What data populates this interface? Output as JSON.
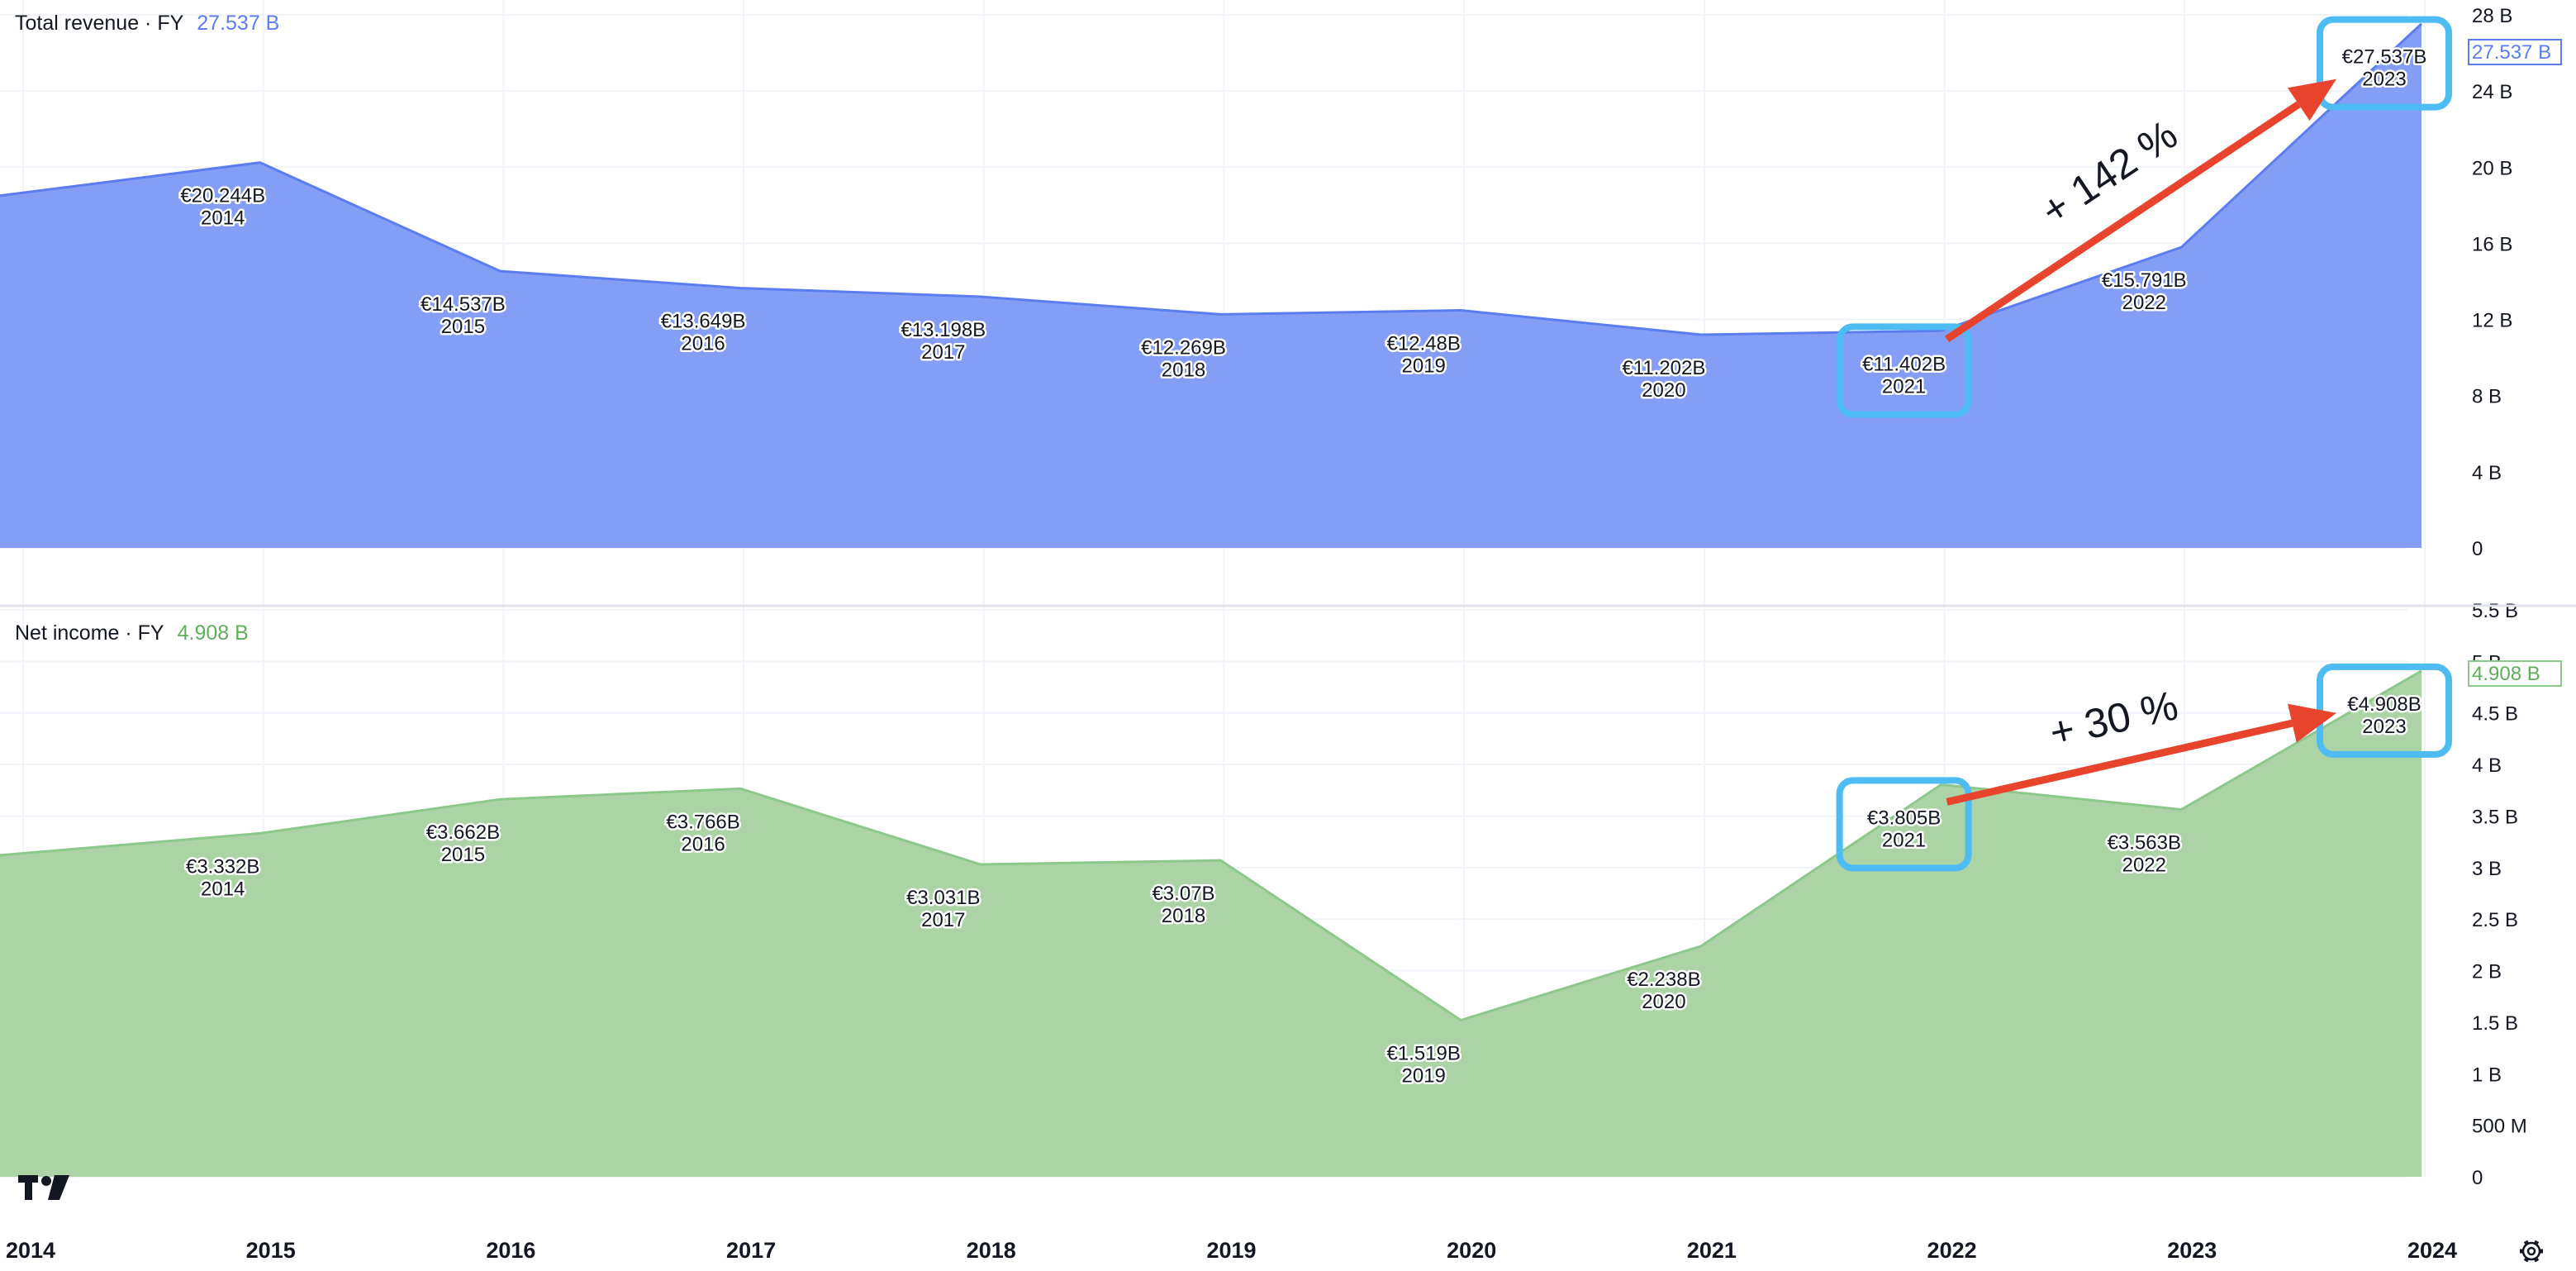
{
  "colors": {
    "revenue_line": "#5b7df0",
    "revenue_fill": "#849ef6",
    "net_income_line": "#8cc88a",
    "net_income_fill": "#abd3a6",
    "highlight_box": "#4cbcf2",
    "arrow": "#e8442d",
    "grid": "#f0f3fa",
    "separator": "#e0e3eb"
  },
  "icons": {
    "logo": "tradingview-logo-icon",
    "settings": "settings-gear-icon"
  },
  "chart_data": [
    {
      "type": "area",
      "title": "Total revenue · FY",
      "last_value_label": "27.537 B",
      "x": [
        "2014",
        "2015",
        "2016",
        "2017",
        "2018",
        "2019",
        "2020",
        "2021",
        "2022",
        "2023"
      ],
      "series": [
        {
          "name": "Total revenue",
          "values": [
            20.244,
            14.537,
            13.649,
            13.198,
            12.269,
            12.48,
            11.202,
            11.402,
            15.791,
            27.537
          ]
        }
      ],
      "data_labels": [
        "€20.244B",
        "€14.537B",
        "€13.649B",
        "€13.198B",
        "€12.269B",
        "€12.48B",
        "€11.202B",
        "€11.402B",
        "€15.791B",
        "€27.537B"
      ],
      "start_value": 18.5,
      "ylim": [
        0,
        28
      ],
      "yticks": [
        0,
        4,
        8,
        12,
        16,
        20,
        24,
        28
      ],
      "ytick_labels": [
        "0",
        "4 B",
        "8 B",
        "12 B",
        "16 B",
        "20 B",
        "24 B",
        "28 B"
      ],
      "annotation": {
        "text": "+ 142 %",
        "from": "2021",
        "to": "2023"
      },
      "highlighted": [
        "2021",
        "2023"
      ]
    },
    {
      "type": "area",
      "title": "Net income · FY",
      "last_value_label": "4.908 B",
      "x": [
        "2014",
        "2015",
        "2016",
        "2017",
        "2018",
        "2019",
        "2020",
        "2021",
        "2022",
        "2023"
      ],
      "series": [
        {
          "name": "Net income",
          "values": [
            3.332,
            3.662,
            3.766,
            3.031,
            3.07,
            1.519,
            2.238,
            3.805,
            3.563,
            4.908
          ]
        }
      ],
      "data_labels": [
        "€3.332B",
        "€3.662B",
        "€3.766B",
        "€3.031B",
        "€3.07B",
        "€1.519B",
        "€2.238B",
        "€3.805B",
        "€3.563B",
        "€4.908B"
      ],
      "start_value": 3.12,
      "ylim": [
        0,
        5.5
      ],
      "yticks": [
        0,
        0.5,
        1,
        1.5,
        2,
        2.5,
        3,
        3.5,
        4,
        4.5,
        5,
        5.5
      ],
      "ytick_labels": [
        "0",
        "500 M",
        "1 B",
        "1.5 B",
        "2 B",
        "2.5 B",
        "3 B",
        "3.5 B",
        "4 B",
        "4.5 B",
        "5 B",
        "5.5 B"
      ],
      "annotation": {
        "text": "+ 30 %",
        "from": "2021",
        "to": "2023"
      },
      "highlighted": [
        "2021",
        "2023"
      ]
    }
  ],
  "x_axis": {
    "labels": [
      "2014",
      "2015",
      "2016",
      "2017",
      "2018",
      "2019",
      "2020",
      "2021",
      "2022",
      "2023",
      "2024"
    ]
  }
}
